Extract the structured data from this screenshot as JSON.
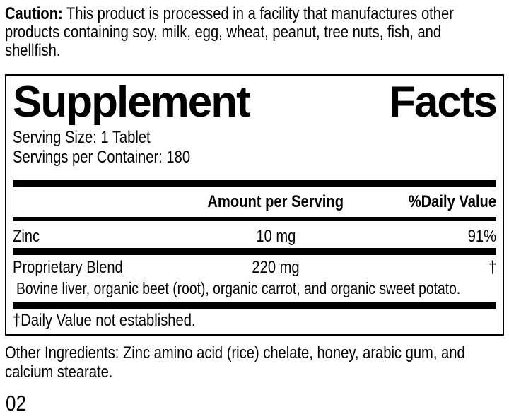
{
  "caution": {
    "label": "Caution:",
    "lines": [
      "This product is processed in a facility that manufactures other",
      "products containing soy, milk, egg, wheat, peanut, tree nuts, fish, and",
      "shellfish."
    ]
  },
  "supplement_facts": {
    "title": "Supplement Facts",
    "serving_size": "Serving Size: 1 Tablet",
    "servings_per_container": "Servings per Container: 180",
    "columns": {
      "amount": "Amount per Serving",
      "daily_value": "%Daily Value"
    },
    "rows": [
      {
        "name": "Zinc",
        "amount": "10 mg",
        "daily_value": "91%"
      },
      {
        "name": "Proprietary Blend",
        "amount": "220 mg",
        "daily_value": "†"
      }
    ],
    "blend_components": "Bovine liver, organic beet (root), organic carrot, and organic sweet potato.",
    "footnote": "†Daily Value not established."
  },
  "other_ingredients": {
    "lines": [
      "Other Ingredients: Zinc amino acid (rice) chelate, honey, arabic gum, and",
      "calcium stearate."
    ]
  },
  "footer_code": "02",
  "colors": {
    "text": "#000000",
    "background": "#ffffff"
  }
}
